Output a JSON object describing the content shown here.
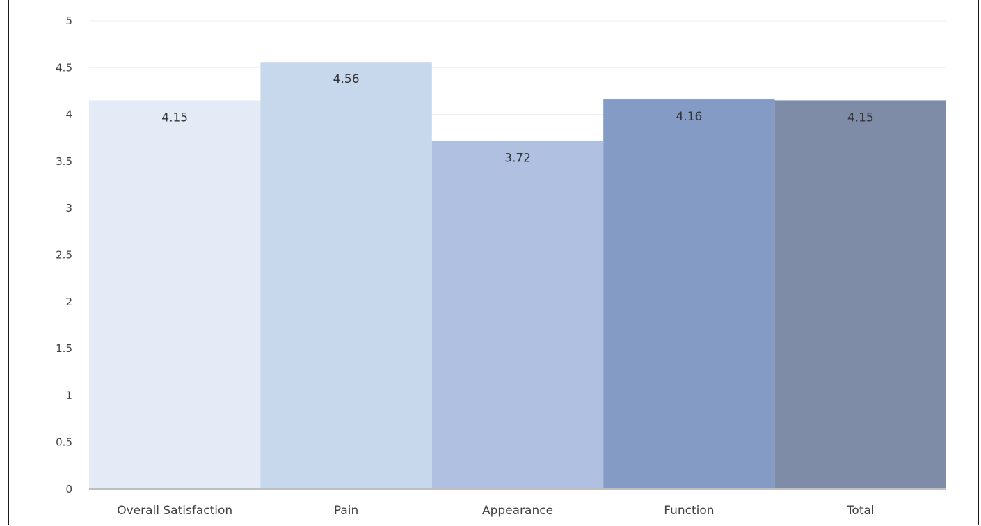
{
  "chart_data": {
    "type": "bar",
    "categories": [
      "Overall Satisfaction",
      "Pain",
      "Appearance",
      "Function",
      "Total"
    ],
    "values": [
      4.15,
      4.56,
      3.72,
      4.16,
      4.15
    ],
    "data_labels": [
      "4.15",
      "4.56",
      "3.72",
      "4.16",
      "4.15"
    ],
    "bar_colors": [
      "#e4ebf6",
      "#c7d7ec",
      "#afc0e1",
      "#849bc5",
      "#7e8ca8"
    ],
    "yticks": [
      "0",
      "0.5",
      "1",
      "1.5",
      "2",
      "2.5",
      "3",
      "3.5",
      "4",
      "4.5",
      "5"
    ],
    "ylim": [
      0,
      5
    ],
    "grid": true,
    "legend": "none",
    "title": "",
    "xlabel": "",
    "ylabel": ""
  }
}
